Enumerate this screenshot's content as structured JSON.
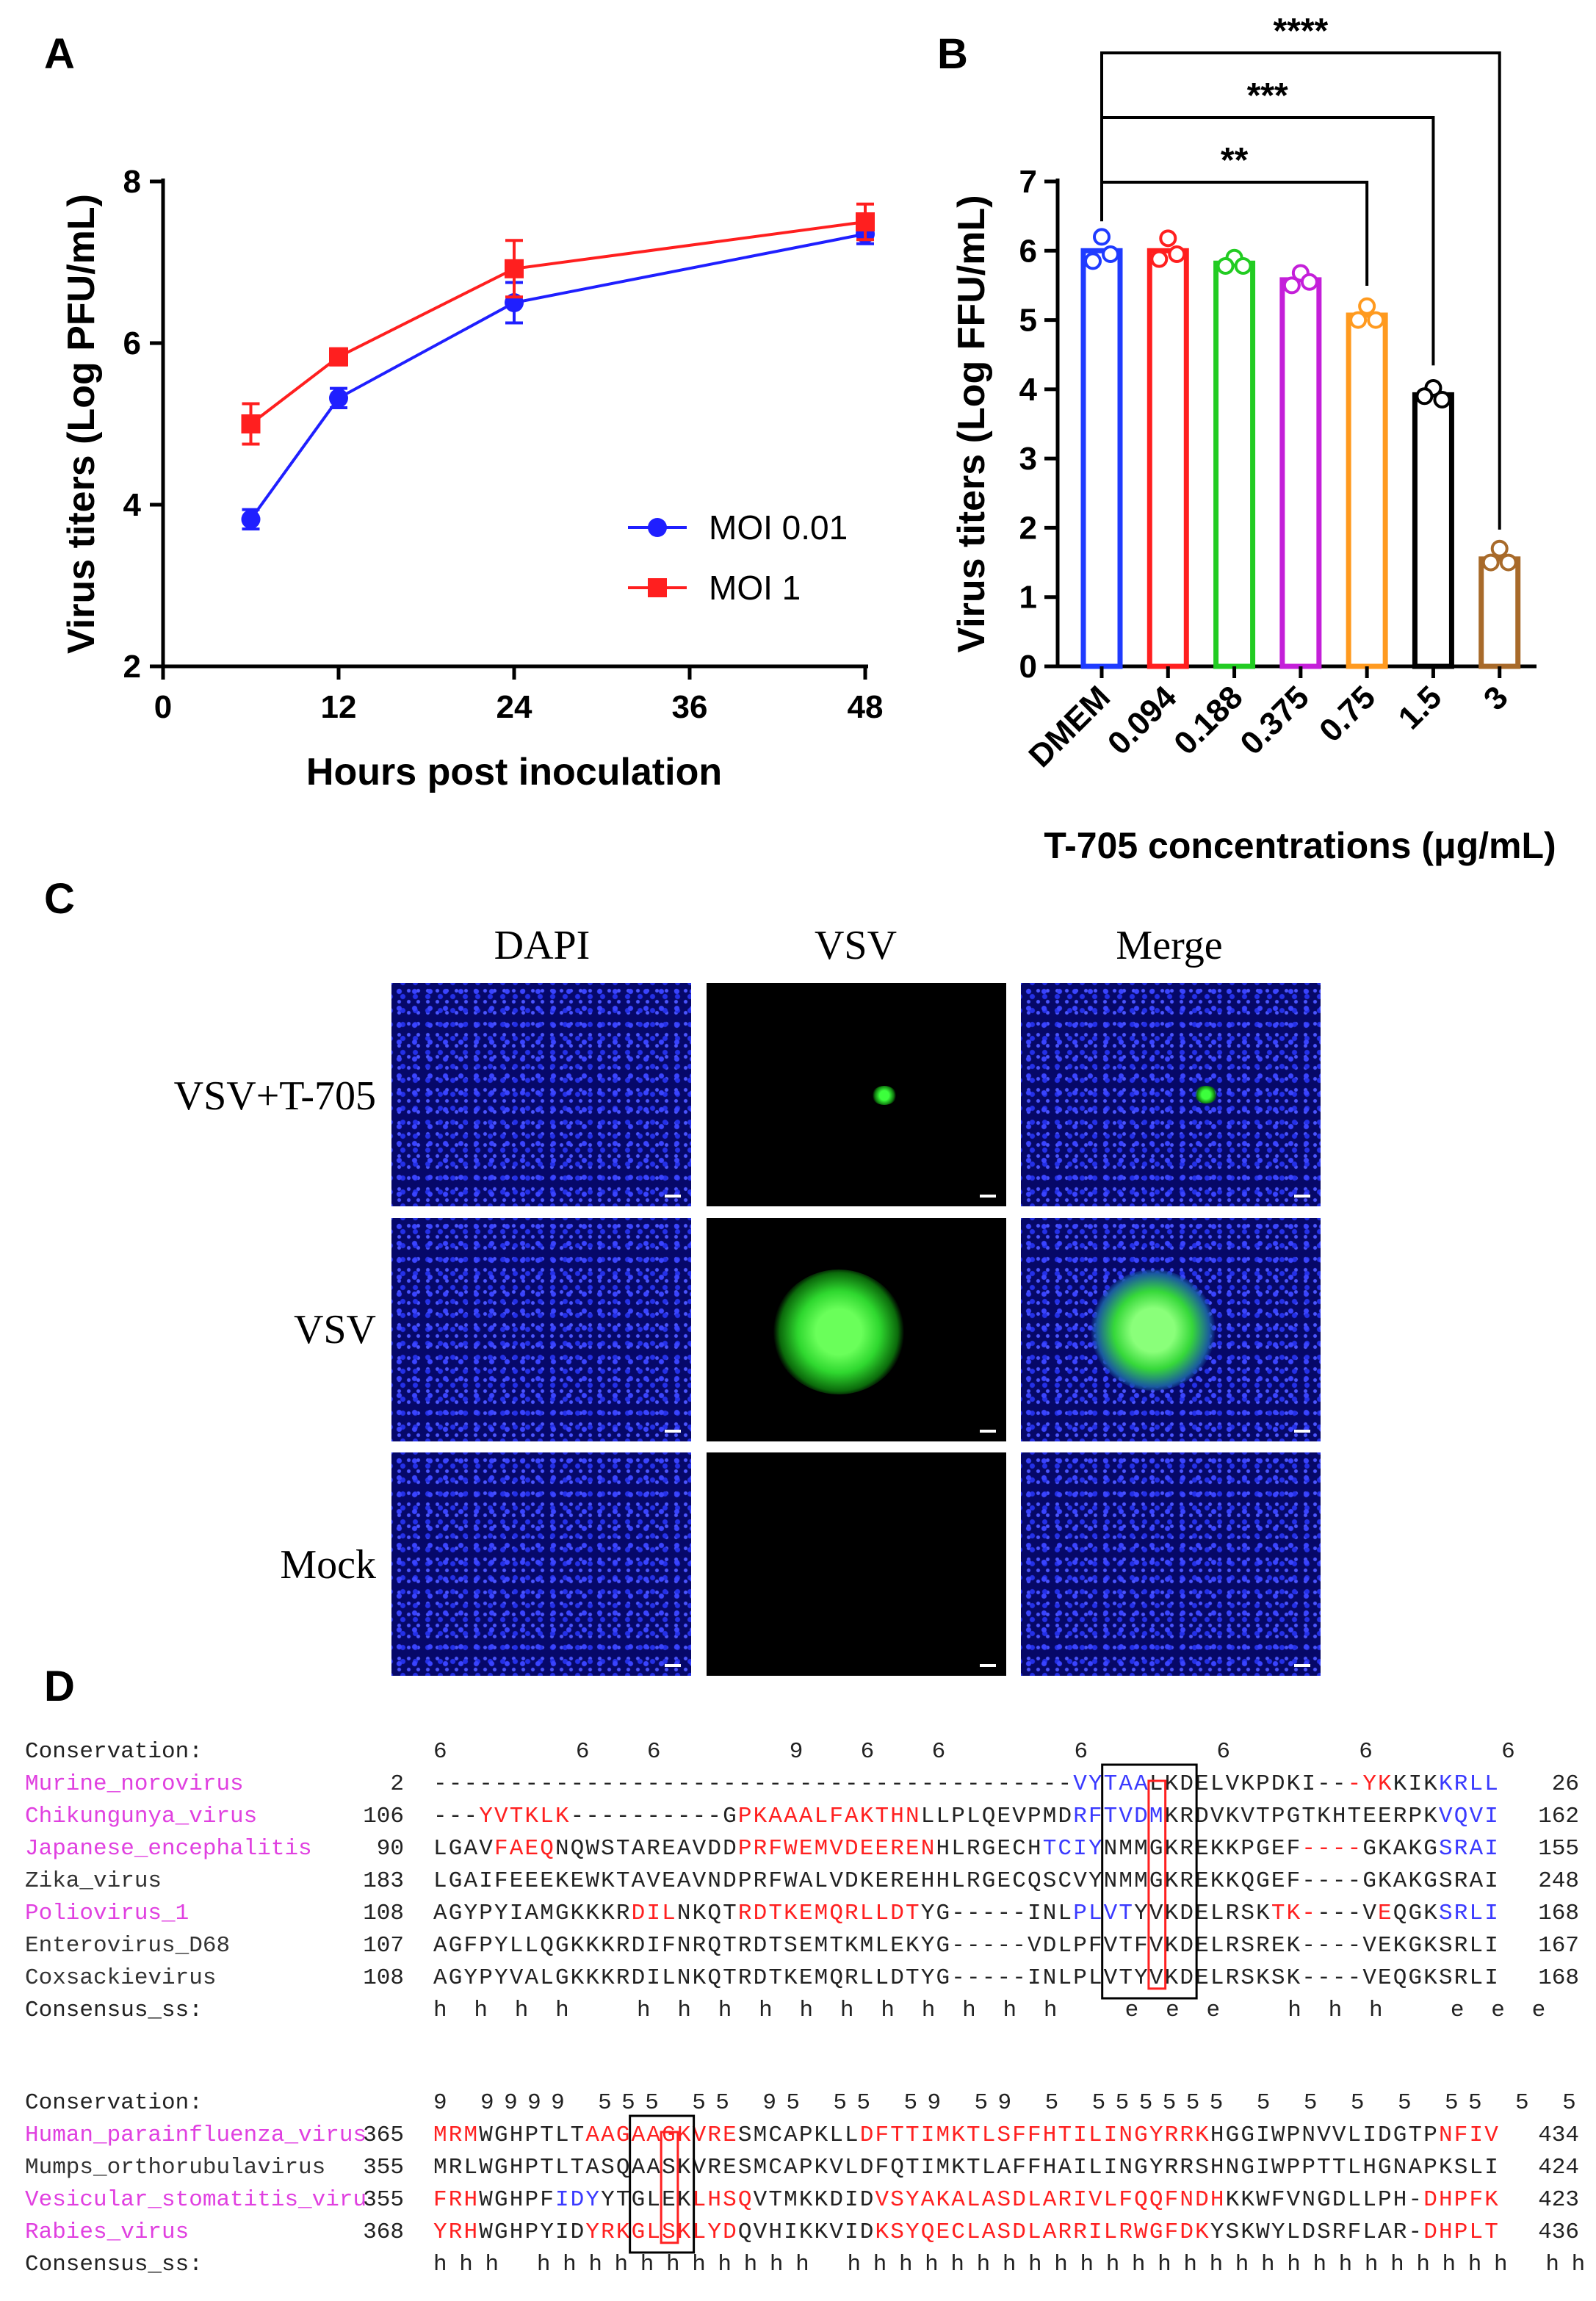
{
  "panels": {
    "a": "A",
    "b": "B",
    "c": "C",
    "d": "D"
  },
  "chart_data": [
    {
      "type": "line",
      "xlabel": "Hours post inoculation",
      "ylabel": "Virus titers (Log PFU/mL)",
      "xlim": [
        0,
        48
      ],
      "ylim": [
        2,
        8
      ],
      "xticks": [
        "0",
        "12",
        "24",
        "36",
        "48"
      ],
      "yticks": [
        "2",
        "4",
        "6",
        "8"
      ],
      "legend_position": "bottom-right",
      "series": [
        {
          "name": "MOI 0.01",
          "color": "#1f1fff",
          "marker": "circle",
          "x": [
            6,
            12,
            24,
            48
          ],
          "y": [
            3.82,
            5.32,
            6.5,
            7.35
          ],
          "err": [
            0.12,
            0.12,
            0.25,
            0.12
          ]
        },
        {
          "name": "MOI 1",
          "color": "#ff1f1f",
          "marker": "square",
          "x": [
            6,
            12,
            24,
            48
          ],
          "y": [
            5.0,
            5.83,
            6.92,
            7.5
          ],
          "err": [
            0.25,
            0.1,
            0.35,
            0.22
          ]
        }
      ]
    },
    {
      "type": "bar",
      "xlabel": "T-705 concentrations (μg/mL)",
      "ylabel": "Virus titers (Log FFU/mL)",
      "ylim": [
        0,
        7
      ],
      "yticks": [
        "0",
        "1",
        "2",
        "3",
        "4",
        "5",
        "6",
        "7"
      ],
      "categories": [
        "DMEM",
        "0.094",
        "0.188",
        "0.375",
        "0.75",
        "1.5",
        "3"
      ],
      "values": [
        6.0,
        6.0,
        5.82,
        5.58,
        5.07,
        3.92,
        1.55
      ],
      "colors": [
        "#1f3bff",
        "#ff1f1f",
        "#22cc22",
        "#c41fd9",
        "#ff9a1f",
        "#000000",
        "#a86a2a"
      ],
      "points": [
        [
          6.2,
          5.85,
          5.95
        ],
        [
          6.18,
          5.88,
          5.95
        ],
        [
          5.9,
          5.78,
          5.78
        ],
        [
          5.68,
          5.5,
          5.55
        ],
        [
          5.2,
          5.0,
          5.0
        ],
        [
          4.02,
          3.9,
          3.85
        ],
        [
          1.7,
          1.5,
          1.5
        ]
      ],
      "significance": [
        {
          "from": "DMEM",
          "to": "0.75",
          "label": "**"
        },
        {
          "from": "DMEM",
          "to": "1.5",
          "label": "***"
        },
        {
          "from": "DMEM",
          "to": "3",
          "label": "****"
        }
      ]
    }
  ],
  "panel_c": {
    "columns": [
      "DAPI",
      "VSV",
      "Merge"
    ],
    "rows": [
      "VSV+T-705",
      "VSV",
      "Mock"
    ]
  },
  "panel_d": {
    "block1": {
      "conservation_label": "Conservation:",
      "conservation": "            6   66                          966                6  6 6 6",
      "rows": [
        {
          "name": "Murine_norovirus",
          "start": "2",
          "seq": "------------------------------------------VYTAALKDELVKPDKI---YKKIKKRLL",
          "end": "26",
          "name_color": "#e040e0"
        },
        {
          "name": "Chikungunya_virus",
          "start": "106",
          "seq": "---YVTKLK----------GPKAAALFAKTHNLLPLQEVPMDRFTVDMKRDVKVTPGTKHTEERPKVQVI",
          "end": "162",
          "name_color": "#e040e0"
        },
        {
          "name": "Japanese_encephalitis",
          "start": "90",
          "seq": "LGAVFAEQNQWSTAREAVDDPRFWEMVDEERENHLRGECHTCIYNMMGKREKKPGEF----GKAKGSRAI",
          "end": "155",
          "name_color": "#e040e0"
        },
        {
          "name": "Zika_virus",
          "start": "183",
          "seq": "LGAIFEEEKEWKTAVEAVNDPRFWALVDKEREHHLRGECQSCVYNMMGKREKKQGEF----GKAKGSRAI",
          "end": "248",
          "name_color": "#333333"
        },
        {
          "name": "Poliovirus_1",
          "start": "108",
          "seq": "AGYPYIAMGKKKRDILNKQTRDTKEMQRLLDTYG-----INLPLVTYVKDELRSKTK----VEQGKSRLI",
          "end": "168",
          "name_color": "#e040e0"
        },
        {
          "name": "Enterovirus_D68",
          "start": "107",
          "seq": "AGFPYLLQGKKKRDIFNRQTRDTSEMTKMLEKYG-----VDLPFVTFVKDELRSREK----VEKGKSRLI",
          "end": "167",
          "name_color": "#333333"
        },
        {
          "name": "Coxsackievirus",
          "start": "108",
          "seq": "AGYPYVALGKKKRDILNKQTRDTKEMQRLLDTYG-----INLPLVTYVKDELRSKSK----VEQGKSRLI",
          "end": "168",
          "name_color": "#333333"
        }
      ],
      "consensus_label": "Consensus_ss:",
      "consensus": "    hhhh            hhhhhhhhhhh          eee             hhh          eee"
    },
    "block2": {
      "conservation_label": "Conservation:",
      "conservation": " 9 9999 555   55 95   55   59 59   5    555555 5 5    5   5 55       5    5",
      "rows": [
        {
          "name": "Human_parainfluenza_virus",
          "start": "365",
          "seq": "MRMWGHPTLTAAGAAGKVRESMCAPKLLDFTTIMKTLSFFHTILINGYRRKHGGIWPNVVLIDGTPNFIV",
          "end": "434",
          "name_color": "#e040e0"
        },
        {
          "name": "Mumps_orthorubulavirus",
          "start": "355",
          "seq": "MRLWGHPTLTASQAASKVRESMCAPKVLDFQTIMKTLAFFHAILINGYRRSHNGIWPPTTLHGNAPKSLI",
          "end": "424",
          "name_color": "#333333"
        },
        {
          "name": "Vesicular_stomatitis_viru",
          "start": "355",
          "seq": "FRHWGHPFIDYYTGLEKLHSQVTMKKDIDVSYAKALASDLARIVLFQQFNDHKKWFVNGDLLPH-DHPFK",
          "end": "423",
          "name_color": "#e040e0"
        },
        {
          "name": "Rabies_virus",
          "start": "368",
          "seq": "YRHWGHPYIDYRKGLSKLYDQVHIKKVIDKSYQECLASDLARRILRWGFDKYSKWYLDSRFLAR-DHPLT",
          "end": "436",
          "name_color": "#e040e0"
        }
      ],
      "consensus_label": "Consensus_ss:",
      "consensus": "hhh        hhhhhhhhhhh             hhhhhhhhhhhhhhhhhhhhhhhhhh              hhhh"
    }
  }
}
